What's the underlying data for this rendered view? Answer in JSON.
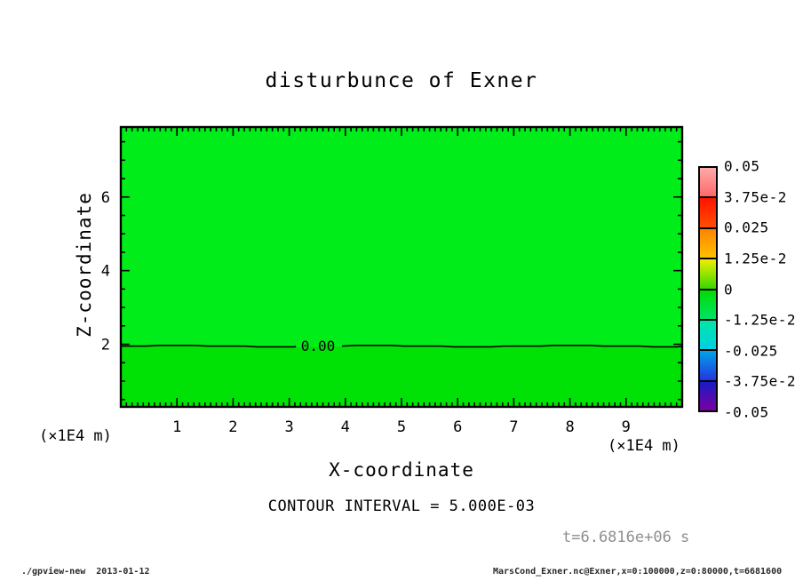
{
  "chart_data": {
    "type": "heatmap",
    "title": "disturbunce of Exner",
    "xlabel": "X-coordinate",
    "ylabel": "Z-coordinate",
    "x_unit_label": "(×1E4 m)",
    "y_unit_label": "(×1E4 m)",
    "xlim": [
      0,
      10
    ],
    "zlim": [
      0.3,
      7.9
    ],
    "x_major_ticks": [
      1,
      2,
      3,
      4,
      5,
      6,
      7,
      8,
      9
    ],
    "x_minor_step": 0.1,
    "z_major_ticks": [
      2,
      4,
      6
    ],
    "z_minor_step": 0.5,
    "grid": false,
    "contour": {
      "z": 1.95,
      "label": "0.00"
    },
    "fill_above_color": "#00ed19",
    "fill_below_color": "#00e206",
    "annotations": {
      "contour_interval": "CONTOUR INTERVAL = 5.000E-03",
      "time": "t=6.6816e+06 s"
    },
    "colorbar": {
      "position": "right",
      "labels": [
        "0.05",
        "3.75e-2",
        "0.025",
        "1.25e-2",
        "0",
        "-1.25e-2",
        "-0.025",
        "-3.75e-2",
        "-0.05"
      ],
      "segments": [
        {
          "from": "#ffaaaa",
          "to": "#ff6868"
        },
        {
          "from": "#ff1300",
          "to": "#ff4f00"
        },
        {
          "from": "#ff8400",
          "to": "#ffc000"
        },
        {
          "from": "#f0ee00",
          "to": "#38d800"
        },
        {
          "from": "#00dc04",
          "to": "#00e464"
        },
        {
          "from": "#00e7a6",
          "to": "#00cfe4"
        },
        {
          "from": "#00a4e8",
          "to": "#2336e0"
        },
        {
          "from": "#1b1bc4",
          "to": "#7a00a4"
        }
      ]
    }
  },
  "footer": {
    "left": "./gpview-new  2013-01-12",
    "right": "MarsCond_Exner.nc@Exner,x=0:100000,z=0:80000,t=6681600"
  }
}
